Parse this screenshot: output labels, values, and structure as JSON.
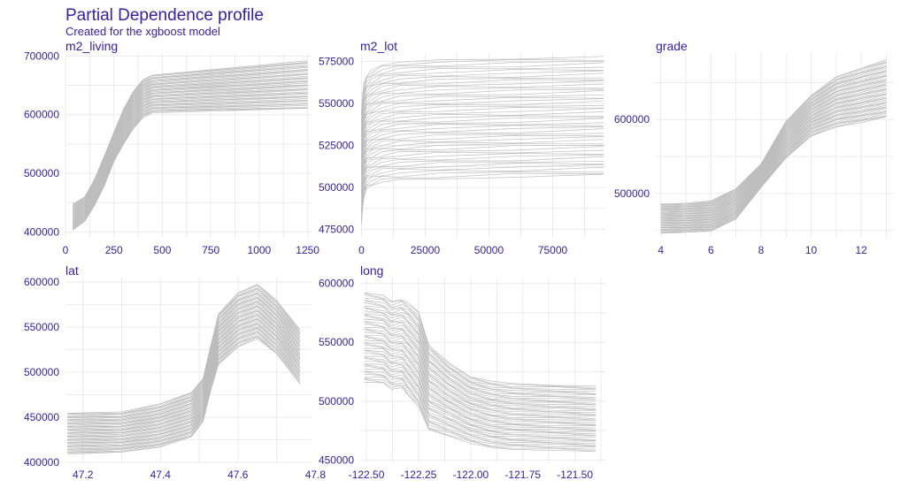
{
  "page": {
    "title": "Partial Dependence profile",
    "subtitle": "Created for the xgboost model"
  },
  "chart_data": {
    "type": "line",
    "title": "Partial Dependence profile",
    "subtitle": "Created for the xgboost model",
    "line_color": "#bdbdbd",
    "text_color": "#371ea3",
    "grid": true,
    "n_profiles": 48,
    "panels": [
      {
        "name": "m2_living",
        "label": "m2_living",
        "xlim": [
          0,
          1270
        ],
        "ylim": [
          390000,
          705000
        ],
        "xticks": [
          0,
          250,
          500,
          750,
          1000,
          1250
        ],
        "xtick_labels": [
          "0",
          "250",
          "500",
          "750",
          "1000",
          "1250"
        ],
        "yticks": [
          400000,
          500000,
          600000,
          700000
        ],
        "ytick_labels": [
          "400000",
          "500000",
          "600000",
          "700000"
        ],
        "profile_x": [
          37,
          100,
          150,
          200,
          250,
          300,
          350,
          400,
          450,
          1250
        ],
        "profile_low": [
          403000,
          418000,
          445000,
          478000,
          520000,
          550000,
          575000,
          595000,
          603000,
          610000
        ],
        "profile_high": [
          448000,
          460000,
          490000,
          530000,
          570000,
          610000,
          640000,
          660000,
          668000,
          692000
        ]
      },
      {
        "name": "m2_lot",
        "label": "m2_lot",
        "xlim": [
          -500,
          96000
        ],
        "ylim": [
          470000,
          580000
        ],
        "xticks": [
          0,
          25000,
          50000,
          75000
        ],
        "xtick_labels": [
          "0",
          "25000",
          "50000",
          "75000"
        ],
        "yticks": [
          475000,
          500000,
          525000,
          550000,
          575000
        ],
        "ytick_labels": [
          "475000",
          "500000",
          "525000",
          "550000",
          "575000"
        ],
        "profile_x": [
          0,
          500,
          1000,
          2000,
          4000,
          8000,
          15000,
          30000,
          60000,
          95000
        ],
        "profile_low": [
          478000,
          488000,
          494000,
          499000,
          501000,
          503000,
          504000,
          505000,
          506000,
          507000
        ],
        "profile_high": [
          545000,
          556000,
          562000,
          567000,
          570000,
          573000,
          575000,
          576000,
          577000,
          578000
        ]
      },
      {
        "name": "grade",
        "label": "grade",
        "xlim": [
          3.8,
          13.3
        ],
        "ylim": [
          440000,
          690000
        ],
        "xticks": [
          4,
          6,
          8,
          10,
          12
        ],
        "xtick_labels": [
          "4",
          "6",
          "8",
          "10",
          "12"
        ],
        "yticks": [
          500000,
          600000
        ],
        "ytick_labels": [
          "500000",
          "600000"
        ],
        "profile_x": [
          4,
          5,
          6,
          7,
          8,
          9,
          10,
          11,
          12,
          13
        ],
        "profile_low": [
          446000,
          447000,
          449000,
          465000,
          508000,
          548000,
          577000,
          590000,
          596000,
          603000
        ],
        "profile_high": [
          486000,
          487000,
          490000,
          507000,
          540000,
          598000,
          633000,
          658000,
          670000,
          681000
        ]
      },
      {
        "name": "lat",
        "label": "lat",
        "xlim": [
          47.155,
          47.79
        ],
        "ylim": [
          400000,
          605000
        ],
        "xticks": [
          47.2,
          47.4,
          47.6,
          47.8
        ],
        "xtick_labels": [
          "47.2",
          "47.4",
          "47.6",
          "47.8"
        ],
        "yticks": [
          400000,
          450000,
          500000,
          550000,
          600000
        ],
        "ytick_labels": [
          "400000",
          "450000",
          "500000",
          "550000",
          "600000"
        ],
        "profile_x": [
          47.16,
          47.3,
          47.4,
          47.48,
          47.51,
          47.53,
          47.55,
          47.6,
          47.65,
          47.7,
          47.76
        ],
        "profile_low": [
          409000,
          411000,
          417000,
          428000,
          445000,
          480000,
          508000,
          528000,
          537000,
          520000,
          487000
        ],
        "profile_high": [
          455000,
          456000,
          465000,
          478000,
          493000,
          530000,
          565000,
          588000,
          598000,
          580000,
          547000
        ]
      },
      {
        "name": "long",
        "label": "long",
        "xlim": [
          -122.53,
          -121.35
        ],
        "ylim": [
          448000,
          605000
        ],
        "xticks": [
          -122.5,
          -122.25,
          -122.0,
          -121.75,
          -121.5
        ],
        "xtick_labels": [
          "-122.50",
          "-122.25",
          "-122.00",
          "-121.75",
          "-121.50"
        ],
        "yticks": [
          450000,
          500000,
          550000,
          600000
        ],
        "ytick_labels": [
          "450000",
          "500000",
          "550000",
          "600000"
        ],
        "profile_x": [
          -122.51,
          -122.42,
          -122.38,
          -122.33,
          -122.3,
          -122.25,
          -122.2,
          -122.1,
          -122.0,
          -121.9,
          -121.8,
          -121.6,
          -121.4
        ],
        "profile_low": [
          516000,
          515000,
          510000,
          511000,
          505000,
          495000,
          475000,
          470000,
          464000,
          460000,
          459000,
          458000,
          457000
        ],
        "profile_high": [
          593000,
          590000,
          585000,
          587000,
          584000,
          576000,
          548000,
          532000,
          521000,
          517000,
          515000,
          514000,
          513000
        ]
      }
    ]
  }
}
